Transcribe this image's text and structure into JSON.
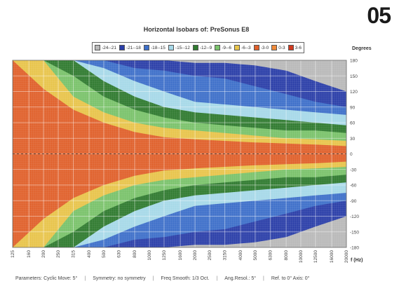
{
  "page_number": "05",
  "chart_data": {
    "type": "heatmap",
    "title": "Horizontal Isobars of:  PreSonus  E8",
    "xlabel": "f (Hz)",
    "ylabel": "Degrees",
    "x_scale": "log",
    "xlim": [
      125,
      20000
    ],
    "ylim": [
      -180,
      180
    ],
    "x_ticks": [
      "125",
      "160",
      "200",
      "250",
      "315",
      "400",
      "500",
      "630",
      "800",
      "1000",
      "1250",
      "1600",
      "2000",
      "2500",
      "3150",
      "4000",
      "5000",
      "6300",
      "8000",
      "10000",
      "12500",
      "16000",
      "20000"
    ],
    "y_ticks": [
      180,
      150,
      120,
      90,
      60,
      30,
      0,
      -30,
      -60,
      -90,
      -120,
      -150,
      -180
    ],
    "legend": [
      {
        "label": "-24--21",
        "color": "#b9b9b9"
      },
      {
        "label": "-21--18",
        "color": "#2a3ea8"
      },
      {
        "label": "-18--15",
        "color": "#3d6fc9"
      },
      {
        "label": "-15--12",
        "color": "#a6d8e8"
      },
      {
        "label": "-12--9",
        "color": "#2f7a2f"
      },
      {
        "label": "-9--6",
        "color": "#79c26a"
      },
      {
        "label": "-6--3",
        "color": "#e8c44a"
      },
      {
        "label": "-3-0",
        "color": "#e0602a"
      },
      {
        "label": "0-3",
        "color": "#f08a3a"
      },
      {
        "label": "3-6",
        "color": "#d03a20"
      }
    ],
    "isobar_boundaries_deg": {
      "x_hz": [
        125,
        200,
        315,
        500,
        800,
        1250,
        2000,
        3150,
        5000,
        8000,
        12500,
        20000
      ],
      "lvl_3": [
        180,
        125,
        85,
        60,
        42,
        32,
        28,
        25,
        22,
        20,
        18,
        15
      ],
      "lvl_6": [
        180,
        180,
        110,
        80,
        60,
        50,
        45,
        40,
        35,
        30,
        28,
        25
      ],
      "lvl_9": [
        180,
        180,
        150,
        110,
        85,
        70,
        60,
        55,
        50,
        45,
        45,
        40
      ],
      "lvl_12": [
        180,
        180,
        180,
        140,
        110,
        90,
        80,
        75,
        70,
        65,
        60,
        55
      ],
      "lvl_15": [
        180,
        180,
        180,
        165,
        140,
        120,
        100,
        95,
        90,
        85,
        80,
        75
      ],
      "lvl_18": [
        180,
        180,
        180,
        180,
        165,
        160,
        150,
        145,
        130,
        115,
        100,
        90
      ],
      "lvl_21": [
        180,
        180,
        180,
        180,
        180,
        180,
        175,
        175,
        170,
        160,
        140,
        120
      ]
    }
  },
  "footer": {
    "parameters": "Parameters:   Cyclic Move:  5°",
    "symmetry": "Symmetry:  no symmetry",
    "freq_smooth": "Freq Smooth: 1/3  Oct.",
    "ang_resol": "Ang.Resol.:   5°",
    "ref": "Ref. to 0° Axis:   0°"
  }
}
